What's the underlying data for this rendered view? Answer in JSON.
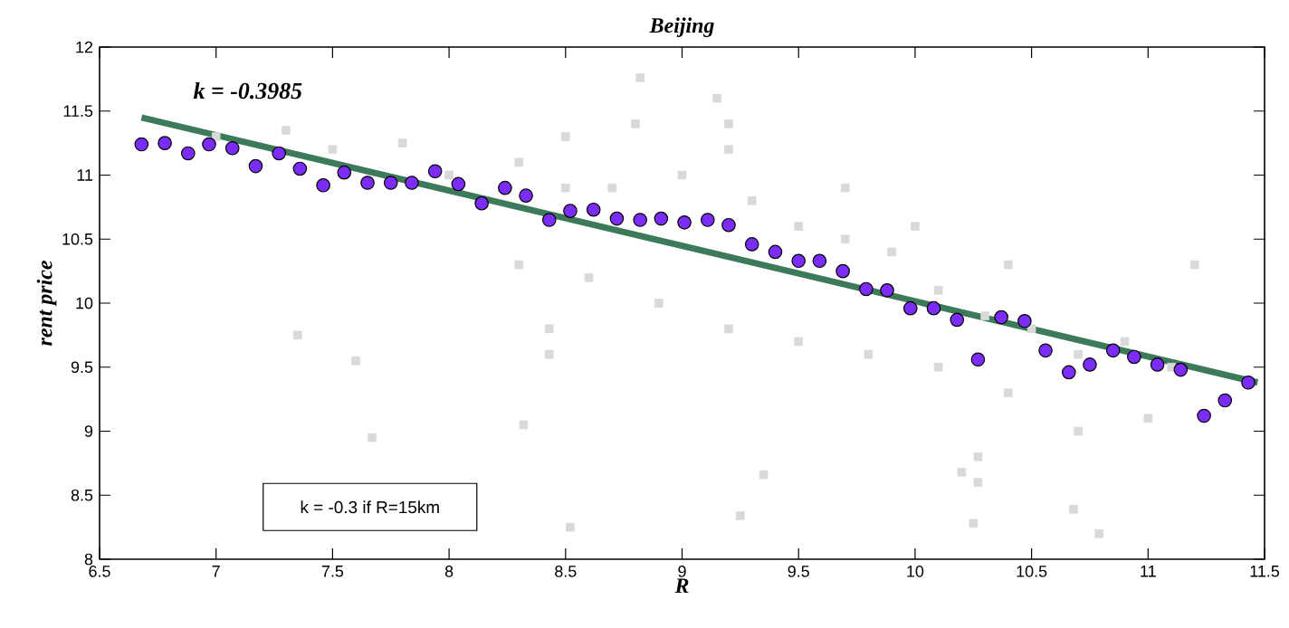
{
  "chart_data": {
    "type": "scatter",
    "title": "Beijing",
    "xlabel": "R",
    "ylabel": "rent price",
    "xlim": [
      6.5,
      11.5
    ],
    "ylim": [
      8,
      12
    ],
    "xticks": [
      6.5,
      7,
      7.5,
      8,
      8.5,
      9,
      9.5,
      10,
      10.5,
      11,
      11.5
    ],
    "yticks": [
      8,
      8.5,
      9,
      9.5,
      10,
      10.5,
      11,
      11.5,
      12
    ],
    "annotations": [
      "k = -0.3985",
      "k = -0.3  if R=15km"
    ],
    "series": [
      {
        "marker": "square",
        "color": "#d9d9d9",
        "x": [
          7.0,
          7.3,
          7.5,
          7.8,
          8.0,
          8.3,
          8.5,
          8.7,
          9.0,
          9.2,
          9.3,
          9.5,
          9.7,
          9.9,
          10.1,
          10.3,
          10.5,
          10.7,
          10.9,
          11.1,
          8.3,
          8.6,
          8.9,
          9.2,
          9.5,
          9.8,
          10.1,
          10.4,
          10.7,
          11.0,
          8.5,
          8.8,
          9.2,
          9.7,
          10.0,
          10.4,
          11.2,
          7.35,
          7.6,
          8.82,
          9.15,
          8.52,
          10.25,
          10.79,
          10.68,
          9.25,
          7.67,
          8.32,
          9.35,
          10.2,
          8.43,
          8.43,
          10.27,
          10.27
        ],
        "values": [
          11.3,
          11.35,
          11.2,
          11.25,
          11.0,
          11.1,
          10.9,
          10.9,
          11.0,
          11.2,
          10.8,
          10.6,
          10.5,
          10.4,
          10.1,
          9.9,
          9.8,
          9.6,
          9.7,
          9.5,
          10.3,
          10.2,
          10.0,
          9.8,
          9.7,
          9.6,
          9.5,
          9.3,
          9.0,
          9.1,
          11.3,
          11.4,
          11.4,
          10.9,
          10.6,
          10.3,
          10.3,
          9.75,
          9.55,
          11.76,
          11.6,
          8.25,
          8.28,
          8.2,
          8.39,
          8.34,
          8.95,
          9.05,
          8.66,
          8.68,
          9.8,
          9.6,
          8.6,
          8.8
        ]
      },
      {
        "type": "line",
        "color": "#3d7a5a",
        "x": [
          6.68,
          11.47
        ],
        "values": [
          11.45,
          9.38
        ]
      },
      {
        "marker": "circle",
        "color": "#7b2cf5",
        "x": [
          6.68,
          6.78,
          6.88,
          6.97,
          7.07,
          7.17,
          7.27,
          7.36,
          7.46,
          7.55,
          7.65,
          7.75,
          7.84,
          7.94,
          8.04,
          8.14,
          8.24,
          8.33,
          8.43,
          8.52,
          8.62,
          8.72,
          8.82,
          8.91,
          9.01,
          9.11,
          9.2,
          9.3,
          9.4,
          9.5,
          9.59,
          9.69,
          9.79,
          9.88,
          9.98,
          10.08,
          10.18,
          10.27,
          10.37,
          10.47,
          10.56,
          10.66,
          10.75,
          10.85,
          10.94,
          11.04,
          11.14,
          11.24,
          11.33,
          11.43
        ],
        "values": [
          11.24,
          11.25,
          11.17,
          11.24,
          11.21,
          11.07,
          11.17,
          11.05,
          10.92,
          11.02,
          10.94,
          10.94,
          10.94,
          11.03,
          10.93,
          10.78,
          10.9,
          10.84,
          10.65,
          10.72,
          10.73,
          10.66,
          10.65,
          10.66,
          10.63,
          10.65,
          10.61,
          10.46,
          10.4,
          10.33,
          10.33,
          10.25,
          10.11,
          10.1,
          9.96,
          9.96,
          9.87,
          9.56,
          9.89,
          9.86,
          9.63,
          9.46,
          9.52,
          9.63,
          9.58,
          9.52,
          9.48,
          9.12,
          9.24,
          9.38
        ]
      }
    ]
  }
}
